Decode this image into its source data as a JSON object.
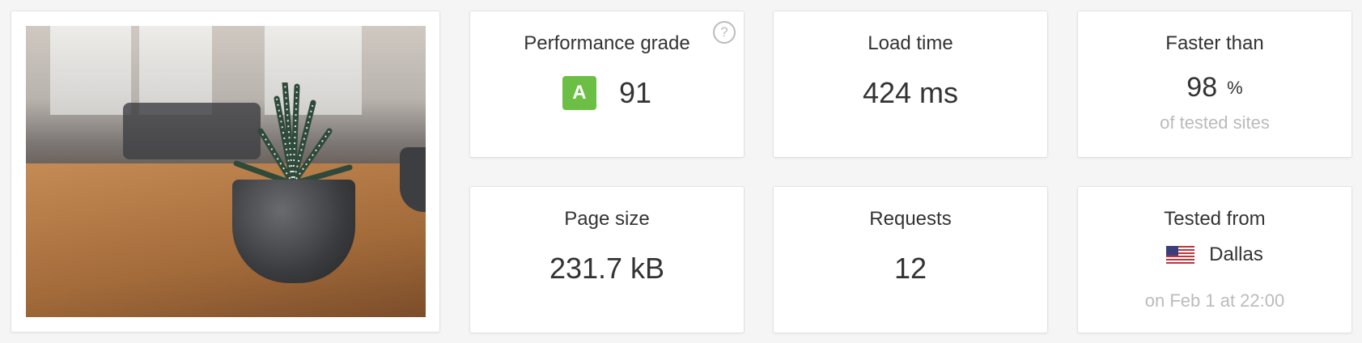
{
  "cards": {
    "grade": {
      "title": "Performance grade",
      "letter": "A",
      "score": "91",
      "help": "?",
      "color": "#6bbf44"
    },
    "load_time": {
      "title": "Load time",
      "value": "424 ms"
    },
    "faster": {
      "title": "Faster than",
      "value": "98",
      "unit": "%",
      "sub": "of tested sites"
    },
    "page_size": {
      "title": "Page size",
      "value": "231.7 kB"
    },
    "requests": {
      "title": "Requests",
      "value": "12"
    },
    "tested_from": {
      "title": "Tested from",
      "location": "Dallas",
      "flag": "us-flag-icon",
      "date": "on Feb 1 at 22:00"
    }
  }
}
